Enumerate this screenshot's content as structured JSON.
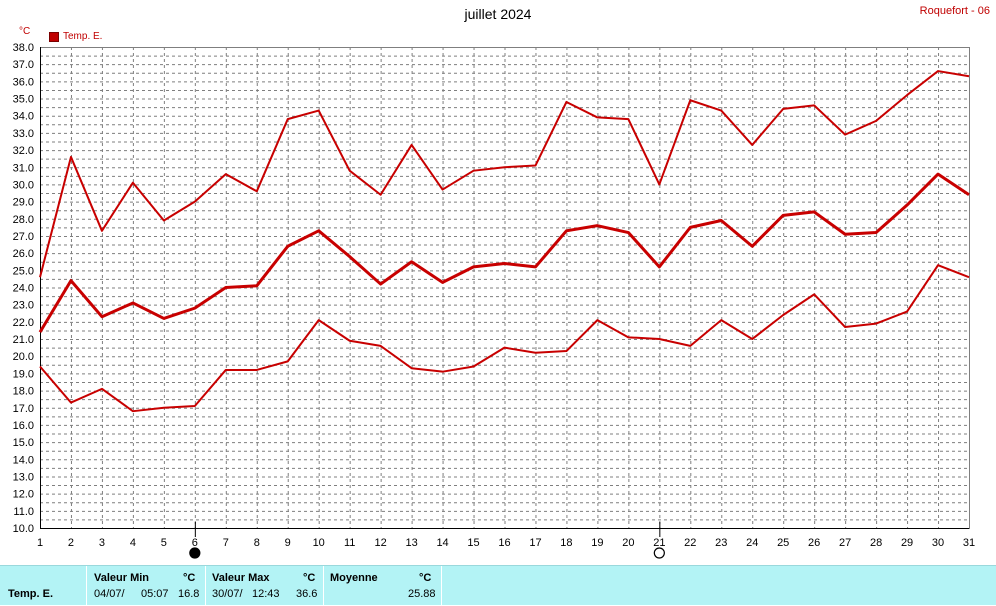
{
  "header": {
    "title": "juillet 2024",
    "station": "Roquefort - 06",
    "unit": "°C",
    "legend_label": "Temp. E."
  },
  "colors": {
    "series": "#c80000",
    "grid": "#7f7f7f",
    "axis": "#000000",
    "stats_background": "#b3f3f5"
  },
  "moon_phases": [
    {
      "day": 6,
      "phase": "new-moon"
    },
    {
      "day": 21,
      "phase": "full-moon"
    }
  ],
  "chart_data": {
    "type": "line",
    "title": "juillet 2024",
    "ylabel": "°C",
    "ylim": [
      10.0,
      38.0
    ],
    "ytick_step": 0.5,
    "ytick_label_step": 1.0,
    "grid": true,
    "legend": "top-left",
    "x": [
      1,
      2,
      3,
      4,
      5,
      6,
      7,
      8,
      9,
      10,
      11,
      12,
      13,
      14,
      15,
      16,
      17,
      18,
      19,
      20,
      21,
      22,
      23,
      24,
      25,
      26,
      27,
      28,
      29,
      30,
      31
    ],
    "series": [
      {
        "name": "Temp. E.",
        "role": "max",
        "values": [
          24.6,
          31.6,
          27.3,
          30.1,
          27.9,
          29.0,
          30.6,
          29.6,
          33.8,
          34.3,
          30.8,
          29.4,
          32.3,
          29.7,
          30.8,
          31.0,
          31.1,
          34.8,
          33.9,
          33.8,
          30.0,
          34.9,
          34.3,
          32.3,
          34.4,
          34.6,
          32.9,
          33.7,
          35.2,
          36.6,
          36.3
        ]
      },
      {
        "name": "Temp. E.",
        "role": "mean",
        "values": [
          21.4,
          24.4,
          22.3,
          23.1,
          22.2,
          22.8,
          24.0,
          24.1,
          26.4,
          27.3,
          25.8,
          24.2,
          25.5,
          24.3,
          25.2,
          25.4,
          25.2,
          27.3,
          27.6,
          27.2,
          25.2,
          27.5,
          27.9,
          26.4,
          28.2,
          28.4,
          27.1,
          27.2,
          28.8,
          30.6,
          29.4
        ]
      },
      {
        "name": "Temp. E.",
        "role": "min",
        "values": [
          19.4,
          17.3,
          18.1,
          16.8,
          17.0,
          17.1,
          19.2,
          19.2,
          19.7,
          22.1,
          20.9,
          20.6,
          19.3,
          19.1,
          19.4,
          20.5,
          20.2,
          20.3,
          22.1,
          21.1,
          21.0,
          20.6,
          22.1,
          21.0,
          22.4,
          23.6,
          21.7,
          21.9,
          22.6,
          25.3,
          24.6
        ]
      }
    ]
  },
  "stats": {
    "row_label": "Temp. E.",
    "min": {
      "label": "Valeur Min",
      "unit": "°C",
      "date": "04/07/",
      "time": "05:07",
      "value": "16.8"
    },
    "max": {
      "label": "Valeur Max",
      "unit": "°C",
      "date": "30/07/",
      "time": "12:43",
      "value": "36.6"
    },
    "mean": {
      "label": "Moyenne",
      "unit": "°C",
      "value": "25.88"
    }
  }
}
